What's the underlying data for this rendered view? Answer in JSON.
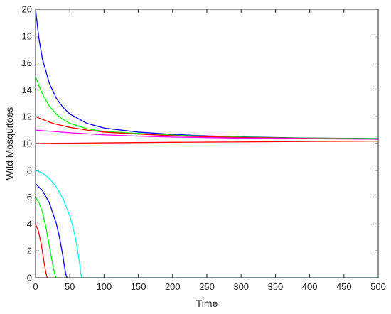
{
  "chart_data": {
    "type": "line",
    "xlabel": "Time",
    "ylabel": "Wild Mosquitoes",
    "xlim": [
      0,
      500
    ],
    "ylim": [
      0,
      20
    ],
    "xticks": [
      0,
      50,
      100,
      150,
      200,
      250,
      300,
      350,
      400,
      450,
      500
    ],
    "yticks": [
      0,
      2,
      4,
      6,
      8,
      10,
      12,
      14,
      16,
      18,
      20
    ],
    "grid": false,
    "box": true,
    "series": [
      {
        "color": "#0000ff",
        "x": [
          0,
          5,
          10,
          20,
          30,
          40,
          50,
          75,
          100,
          150,
          200,
          250,
          300,
          350,
          400,
          450,
          500
        ],
        "y": [
          20,
          17.8,
          16.3,
          14.5,
          13.4,
          12.7,
          12.2,
          11.5,
          11.15,
          10.85,
          10.68,
          10.57,
          10.5,
          10.45,
          10.41,
          10.39,
          10.37
        ]
      },
      {
        "color": "#00ff00",
        "x": [
          0,
          5,
          10,
          20,
          30,
          40,
          50,
          75,
          100,
          150,
          200,
          250,
          300,
          350,
          400,
          450,
          500
        ],
        "y": [
          15,
          14.3,
          13.7,
          12.8,
          12.2,
          11.8,
          11.5,
          11.1,
          10.9,
          10.75,
          10.62,
          10.54,
          10.48,
          10.43,
          10.4,
          10.38,
          10.36
        ]
      },
      {
        "color": "#ff0000",
        "x": [
          0,
          10,
          25,
          50,
          75,
          100,
          150,
          200,
          250,
          300,
          350,
          400,
          450,
          500
        ],
        "y": [
          12,
          11.8,
          11.5,
          11.2,
          11.0,
          10.85,
          10.7,
          10.58,
          10.5,
          10.45,
          10.41,
          10.38,
          10.35,
          10.33
        ]
      },
      {
        "color": "#ff00ff",
        "x": [
          0,
          25,
          50,
          100,
          150,
          200,
          250,
          300,
          350,
          400,
          450,
          500
        ],
        "y": [
          11,
          10.9,
          10.8,
          10.65,
          10.55,
          10.48,
          10.44,
          10.4,
          10.38,
          10.36,
          10.34,
          10.32
        ]
      },
      {
        "color": "#ff0000",
        "x": [
          0,
          100,
          200,
          300,
          400,
          500
        ],
        "y": [
          10,
          10.05,
          10.09,
          10.12,
          10.15,
          10.18
        ]
      },
      {
        "color": "#00ffff",
        "x": [
          0,
          10,
          20,
          30,
          40,
          50,
          55,
          60,
          63,
          65,
          67,
          500
        ],
        "y": [
          8,
          7.8,
          7.4,
          6.8,
          5.9,
          4.6,
          3.7,
          2.5,
          1.5,
          0.8,
          0,
          0
        ]
      },
      {
        "color": "#0000ff",
        "x": [
          0,
          10,
          20,
          30,
          35,
          40,
          42,
          44,
          46
        ],
        "y": [
          7,
          6.5,
          5.6,
          4.1,
          3.0,
          1.6,
          0.9,
          0.3,
          0
        ]
      },
      {
        "color": "#00ff00",
        "x": [
          0,
          5,
          10,
          15,
          20,
          25,
          28,
          30
        ],
        "y": [
          6,
          5.6,
          4.9,
          3.8,
          2.4,
          1.0,
          0.3,
          0
        ]
      },
      {
        "color": "#ff0000",
        "x": [
          0,
          4,
          8,
          12,
          15,
          17
        ],
        "y": [
          4,
          3.5,
          2.6,
          1.3,
          0.4,
          0
        ]
      }
    ]
  }
}
